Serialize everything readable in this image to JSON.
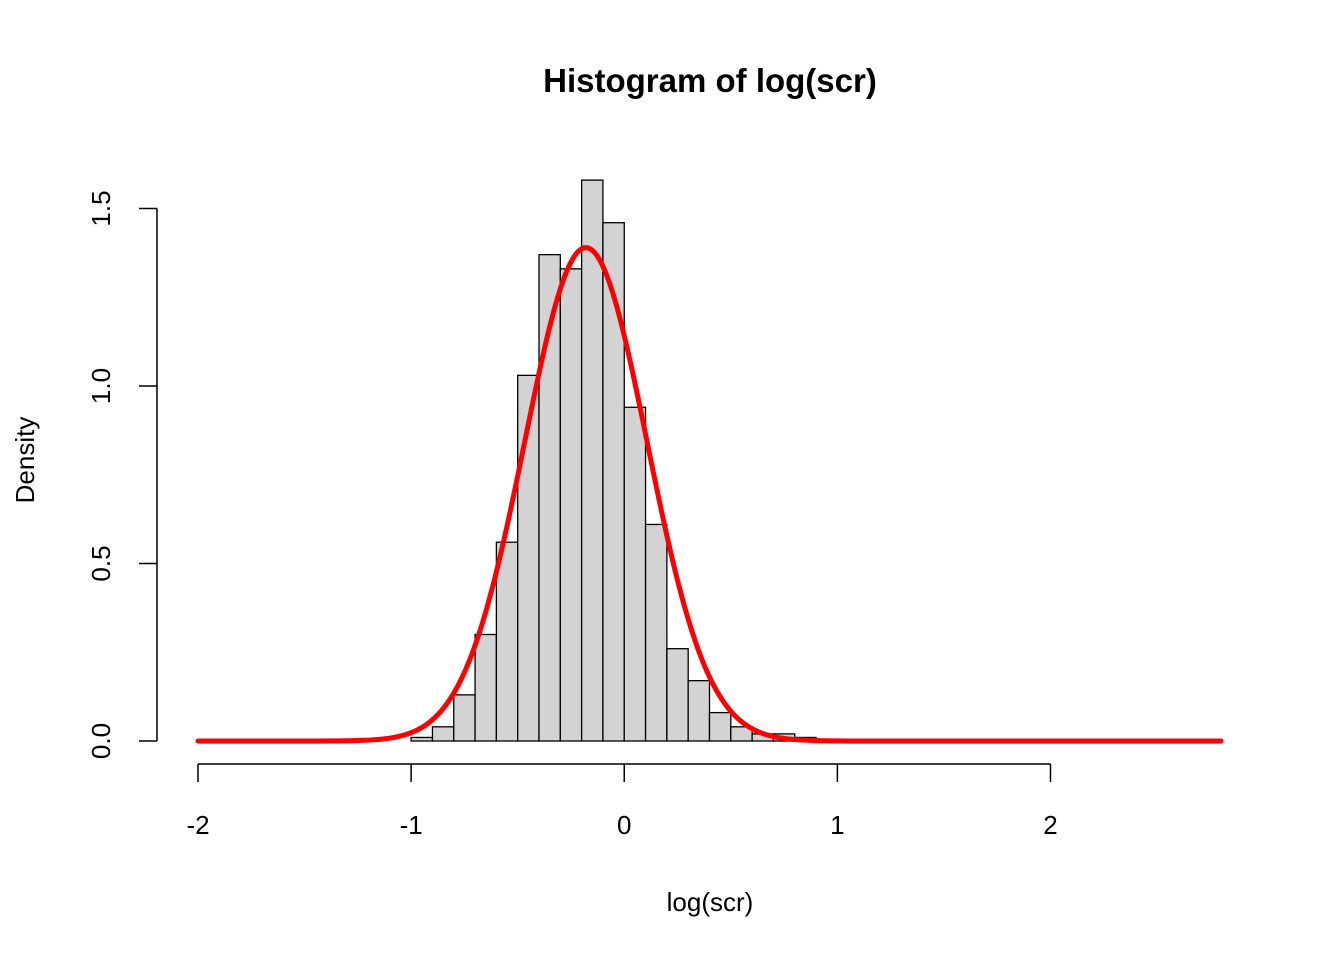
{
  "chart_data": {
    "type": "bar",
    "title": "Histogram of log(scr)",
    "xlabel": "log(scr)",
    "ylabel": "Density",
    "xlim": [
      -2,
      2.8
    ],
    "ylim": [
      0,
      1.6
    ],
    "x_ticks": [
      -2,
      -1,
      0,
      1,
      2
    ],
    "y_ticks": [
      0.0,
      0.5,
      1.0,
      1.5
    ],
    "x_tick_labels": [
      "-2",
      "-1",
      "0",
      "1",
      "2"
    ],
    "y_tick_labels": [
      "0.0",
      "0.5",
      "1.0",
      "1.5"
    ],
    "bin_width": 0.1,
    "bins": [
      {
        "x0": -1.0,
        "x1": -0.9,
        "density": 0.01
      },
      {
        "x0": -0.9,
        "x1": -0.8,
        "density": 0.04
      },
      {
        "x0": -0.8,
        "x1": -0.7,
        "density": 0.13
      },
      {
        "x0": -0.7,
        "x1": -0.6,
        "density": 0.3
      },
      {
        "x0": -0.6,
        "x1": -0.5,
        "density": 0.56
      },
      {
        "x0": -0.5,
        "x1": -0.4,
        "density": 1.03
      },
      {
        "x0": -0.4,
        "x1": -0.3,
        "density": 1.37
      },
      {
        "x0": -0.3,
        "x1": -0.2,
        "density": 1.33
      },
      {
        "x0": -0.2,
        "x1": -0.1,
        "density": 1.58
      },
      {
        "x0": -0.1,
        "x1": 0.0,
        "density": 1.46
      },
      {
        "x0": 0.0,
        "x1": 0.1,
        "density": 0.94
      },
      {
        "x0": 0.1,
        "x1": 0.2,
        "density": 0.61
      },
      {
        "x0": 0.2,
        "x1": 0.3,
        "density": 0.26
      },
      {
        "x0": 0.3,
        "x1": 0.4,
        "density": 0.17
      },
      {
        "x0": 0.4,
        "x1": 0.5,
        "density": 0.08
      },
      {
        "x0": 0.5,
        "x1": 0.6,
        "density": 0.04
      },
      {
        "x0": 0.6,
        "x1": 0.7,
        "density": 0.02
      },
      {
        "x0": 0.7,
        "x1": 0.8,
        "density": 0.02
      },
      {
        "x0": 0.8,
        "x1": 0.9,
        "density": 0.01
      }
    ],
    "bar_fill": "#d3d3d3",
    "bar_stroke": "#000000",
    "curve": {
      "type": "normal-density",
      "mean": -0.18,
      "sd": 0.287,
      "x_range": [
        -2,
        2.8
      ],
      "color": "#ff0000"
    }
  }
}
